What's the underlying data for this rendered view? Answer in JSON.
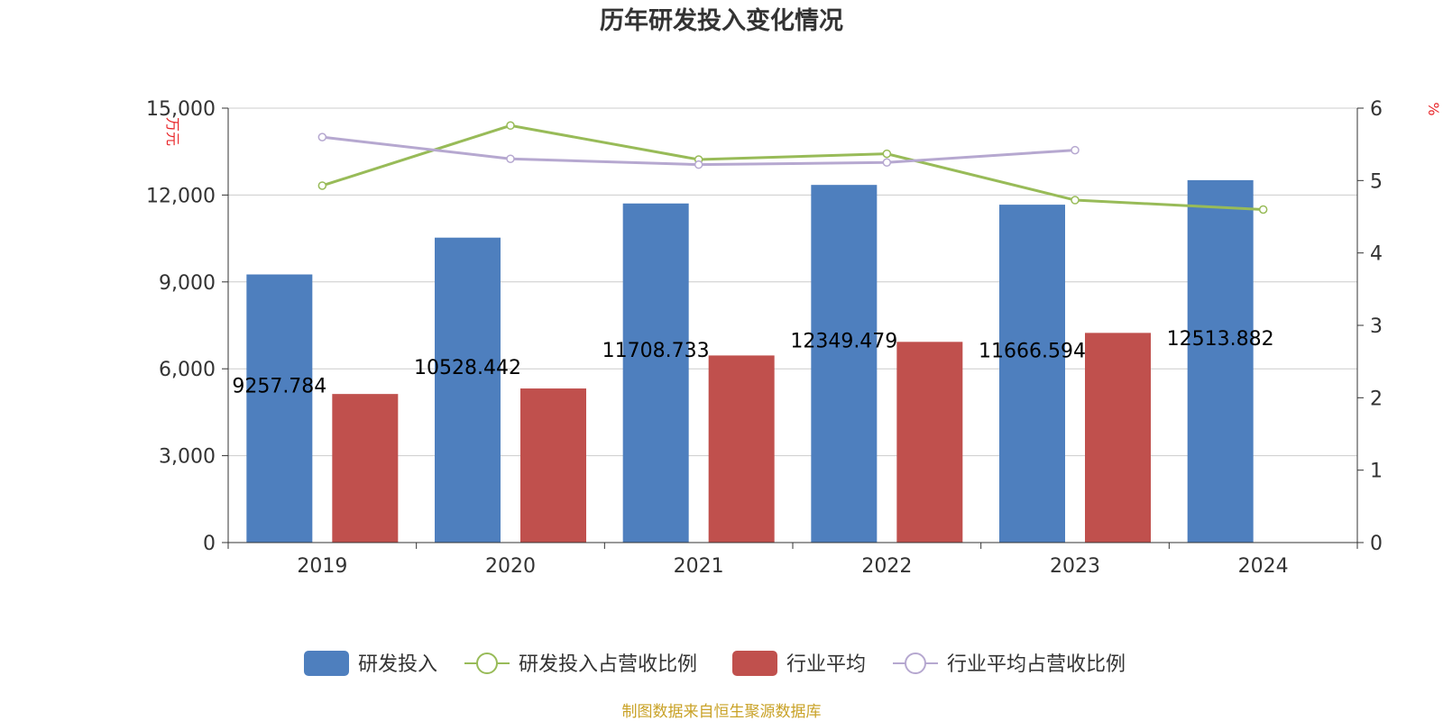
{
  "chart_data": {
    "type": "bar",
    "title": "历年研发投入变化情况",
    "categories": [
      "2019",
      "2020",
      "2021",
      "2022",
      "2023",
      "2024"
    ],
    "left_axis": {
      "unit": "万元",
      "min": 0,
      "max": 15000,
      "interval": 3000,
      "tick_labels": [
        "0",
        "3,000",
        "6,000",
        "9,000",
        "12,000",
        "15,000"
      ]
    },
    "right_axis": {
      "unit": "%",
      "min": 0,
      "max": 6,
      "interval": 1,
      "tick_labels": [
        "0",
        "1",
        "2",
        "3",
        "4",
        "5",
        "6"
      ]
    },
    "series": [
      {
        "name": "研发投入",
        "type": "bar",
        "axis": "left",
        "color": "#4e7fbe",
        "values": [
          9257.784,
          10528.442,
          11708.733,
          12349.479,
          11666.594,
          12513.882
        ],
        "labels": [
          "9257.784",
          "10528.442",
          "11708.733",
          "12349.479",
          "11666.594",
          "12513.882"
        ]
      },
      {
        "name": "研发投入占营收比例",
        "type": "line",
        "axis": "right",
        "color": "#98bb58",
        "values": [
          4.93,
          5.76,
          5.29,
          5.37,
          4.73,
          4.6
        ]
      },
      {
        "name": "行业平均",
        "type": "bar",
        "axis": "left",
        "color": "#c0504d",
        "values": [
          5130,
          5320,
          6460,
          6930,
          7240,
          null
        ]
      },
      {
        "name": "行业平均占营收比例",
        "type": "line",
        "axis": "right",
        "color": "#b6a8d0",
        "values": [
          5.6,
          5.3,
          5.22,
          5.25,
          5.42,
          null
        ]
      }
    ],
    "legend_position": "bottom-center",
    "grid": true
  },
  "source_note": "制图数据来自恒生聚源数据库"
}
